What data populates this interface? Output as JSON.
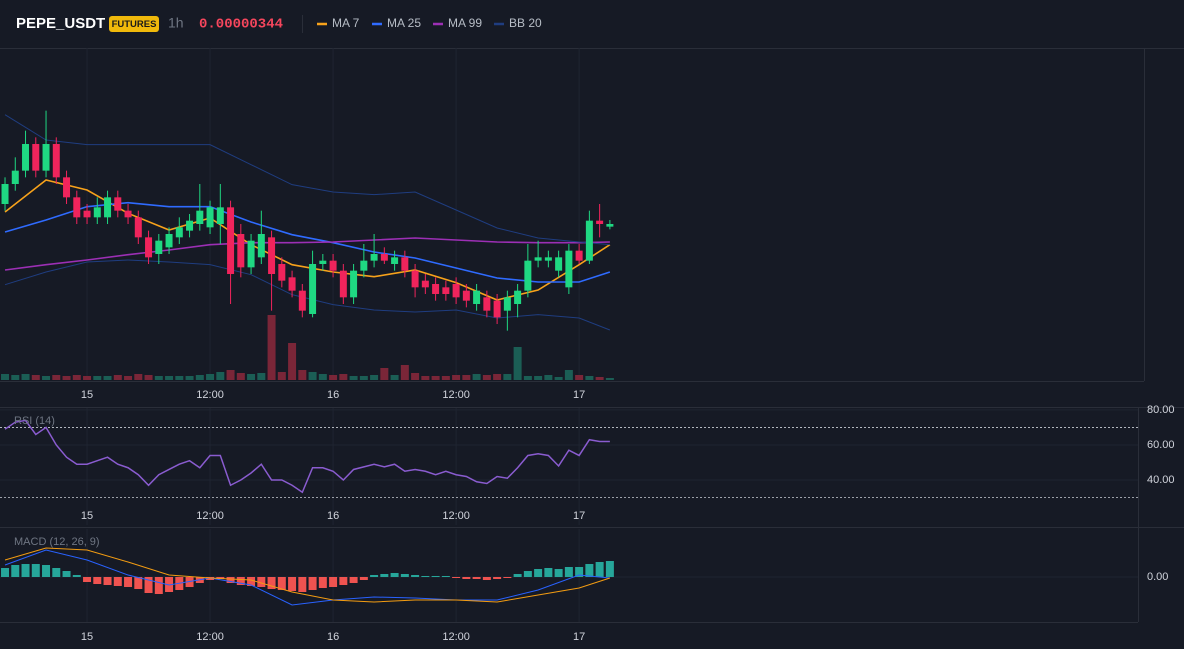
{
  "header": {
    "symbol": "PEPE_USDT",
    "badge": "FUTURES",
    "interval": "1h",
    "price": "0.00000344"
  },
  "chart_data": [
    {
      "type": "candlestick",
      "x": [
        0,
        1,
        2,
        3,
        4,
        5,
        6,
        7,
        8,
        9,
        10,
        11,
        12,
        13,
        14,
        15,
        16,
        17,
        18,
        19,
        20,
        21,
        22,
        23,
        24,
        25,
        26,
        27,
        28,
        29,
        30,
        31,
        32,
        33,
        34,
        35,
        36,
        37,
        38,
        39,
        40,
        41,
        42,
        43,
        44,
        45,
        46,
        47,
        48,
        49,
        50,
        51,
        52,
        53,
        54,
        55,
        56,
        57,
        58,
        59
      ],
      "xlim": [
        -0.49,
        111.1
      ],
      "xticks": [
        {
          "value": 8,
          "label": "15"
        },
        {
          "value": 20,
          "label": "12:00"
        },
        {
          "value": 32,
          "label": "16"
        },
        {
          "value": 44,
          "label": "12:00"
        },
        {
          "value": 56,
          "label": "17"
        }
      ],
      "ylim": [
        3.206e-06,
        3.704e-06
      ],
      "open": [
        3.47e-06,
        3.5e-06,
        3.52e-06,
        3.56e-06,
        3.52e-06,
        3.56e-06,
        3.51e-06,
        3.48e-06,
        3.46e-06,
        3.45e-06,
        3.45e-06,
        3.48e-06,
        3.46e-06,
        3.45e-06,
        3.42e-06,
        3.395e-06,
        3.405e-06,
        3.42e-06,
        3.43e-06,
        3.44e-06,
        3.435e-06,
        3.44e-06,
        3.465e-06,
        3.425e-06,
        3.375e-06,
        3.39e-06,
        3.42e-06,
        3.38e-06,
        3.36e-06,
        3.34e-06,
        3.305e-06,
        3.38e-06,
        3.385e-06,
        3.37e-06,
        3.33e-06,
        3.37e-06,
        3.385e-06,
        3.395e-06,
        3.38e-06,
        3.39e-06,
        3.37e-06,
        3.355e-06,
        3.35e-06,
        3.345e-06,
        3.35e-06,
        3.34e-06,
        3.32e-06,
        3.33e-06,
        3.325e-06,
        3.31e-06,
        3.32e-06,
        3.34e-06,
        3.385e-06,
        3.385e-06,
        3.37e-06,
        3.345e-06,
        3.4e-06,
        3.385e-06,
        3.445e-06,
        3.436e-06
      ],
      "high": [
        3.51e-06,
        3.54e-06,
        3.58e-06,
        3.57e-06,
        3.61e-06,
        3.57e-06,
        3.52e-06,
        3.49e-06,
        3.47e-06,
        3.48e-06,
        3.49e-06,
        3.49e-06,
        3.47e-06,
        3.46e-06,
        3.43e-06,
        3.425e-06,
        3.435e-06,
        3.45e-06,
        3.455e-06,
        3.5e-06,
        3.475e-06,
        3.5e-06,
        3.475e-06,
        3.44e-06,
        3.425e-06,
        3.46e-06,
        3.43e-06,
        3.39e-06,
        3.37e-06,
        3.35e-06,
        3.4e-06,
        3.395e-06,
        3.395e-06,
        3.38e-06,
        3.38e-06,
        3.41e-06,
        3.425e-06,
        3.405e-06,
        3.4e-06,
        3.4e-06,
        3.38e-06,
        3.365e-06,
        3.36e-06,
        3.355e-06,
        3.36e-06,
        3.35e-06,
        3.35e-06,
        3.34e-06,
        3.335e-06,
        3.34e-06,
        3.35e-06,
        3.41e-06,
        3.415e-06,
        3.4e-06,
        3.4e-06,
        3.41e-06,
        3.41e-06,
        3.46e-06,
        3.47e-06,
        3.446e-06
      ],
      "low": [
        3.46e-06,
        3.49e-06,
        3.51e-06,
        3.51e-06,
        3.51e-06,
        3.5e-06,
        3.47e-06,
        3.44e-06,
        3.44e-06,
        3.44e-06,
        3.44e-06,
        3.45e-06,
        3.44e-06,
        3.41e-06,
        3.38e-06,
        3.38e-06,
        3.395e-06,
        3.41e-06,
        3.42e-06,
        3.43e-06,
        3.425e-06,
        3.41e-06,
        3.32e-06,
        3.36e-06,
        3.365e-06,
        3.38e-06,
        3.31e-06,
        3.345e-06,
        3.33e-06,
        3.3e-06,
        3.3e-06,
        3.37e-06,
        3.36e-06,
        3.32e-06,
        3.32e-06,
        3.36e-06,
        3.375e-06,
        3.38e-06,
        3.37e-06,
        3.36e-06,
        3.33e-06,
        3.335e-06,
        3.325e-06,
        3.325e-06,
        3.32e-06,
        3.315e-06,
        3.31e-06,
        3.3e-06,
        3.29e-06,
        3.28e-06,
        3.3e-06,
        3.33e-06,
        3.375e-06,
        3.375e-06,
        3.36e-06,
        3.335e-06,
        3.38e-06,
        3.38e-06,
        3.42e-06,
        3.432e-06
      ],
      "close": [
        3.5e-06,
        3.52e-06,
        3.56e-06,
        3.52e-06,
        3.56e-06,
        3.51e-06,
        3.48e-06,
        3.45e-06,
        3.45e-06,
        3.465e-06,
        3.48e-06,
        3.46e-06,
        3.45e-06,
        3.42e-06,
        3.39e-06,
        3.415e-06,
        3.425e-06,
        3.435e-06,
        3.445e-06,
        3.46e-06,
        3.465e-06,
        3.465e-06,
        3.365e-06,
        3.375e-06,
        3.415e-06,
        3.425e-06,
        3.365e-06,
        3.355e-06,
        3.34e-06,
        3.31e-06,
        3.38e-06,
        3.385e-06,
        3.37e-06,
        3.33e-06,
        3.37e-06,
        3.385e-06,
        3.395e-06,
        3.385e-06,
        3.39e-06,
        3.37e-06,
        3.345e-06,
        3.345e-06,
        3.335e-06,
        3.335e-06,
        3.33e-06,
        3.325e-06,
        3.34e-06,
        3.31e-06,
        3.3e-06,
        3.33e-06,
        3.34e-06,
        3.385e-06,
        3.39e-06,
        3.39e-06,
        3.39e-06,
        3.4e-06,
        3.385e-06,
        3.445e-06,
        3.44e-06,
        3.44e-06
      ],
      "up_color": "#1fd882",
      "down_color": "#f0245c",
      "overlay_x": [
        0,
        4,
        8,
        12,
        16,
        20,
        24,
        28,
        32,
        36,
        40,
        44,
        48,
        52,
        56,
        59
      ],
      "overlays": [
        {
          "name": "MA 7",
          "color": "#f7a21b",
          "values": [
            3.458e-06,
            3.506e-06,
            3.491e-06,
            3.456e-06,
            3.431e-06,
            3.449e-06,
            3.409e-06,
            3.379e-06,
            3.368e-06,
            3.361e-06,
            3.371e-06,
            3.352e-06,
            3.326e-06,
            3.341e-06,
            3.379e-06,
            3.409e-06
          ]
        },
        {
          "name": "MA 25",
          "color": "#2f6bff",
          "values": [
            3.428e-06,
            3.446e-06,
            3.466e-06,
            3.472e-06,
            3.466e-06,
            3.466e-06,
            3.443e-06,
            3.424e-06,
            3.412e-06,
            3.398e-06,
            3.389e-06,
            3.374e-06,
            3.359e-06,
            3.353e-06,
            3.353e-06,
            3.368e-06
          ]
        },
        {
          "name": "MA 99",
          "color": "#9c2fb5",
          "values": [
            3.371e-06,
            3.379e-06,
            3.386e-06,
            3.394e-06,
            3.401e-06,
            3.409e-06,
            3.412e-06,
            3.412e-06,
            3.413e-06,
            3.416e-06,
            3.419e-06,
            3.416e-06,
            3.413e-06,
            3.412e-06,
            3.412e-06,
            3.413e-06
          ]
        },
        {
          "name": "BB 20",
          "color": "#1f3d80",
          "upper": [
            3.604e-06,
            3.566e-06,
            3.559e-06,
            3.559e-06,
            3.559e-06,
            3.559e-06,
            3.529e-06,
            3.499e-06,
            3.488e-06,
            3.484e-06,
            3.488e-06,
            3.461e-06,
            3.434e-06,
            3.419e-06,
            3.413e-06,
            3.409e-06
          ],
          "lower": [
            3.349e-06,
            3.368e-06,
            3.383e-06,
            3.386e-06,
            3.383e-06,
            3.379e-06,
            3.364e-06,
            3.334e-06,
            3.319e-06,
            3.311e-06,
            3.308e-06,
            3.311e-06,
            3.299e-06,
            3.304e-06,
            3.299e-06,
            3.281e-06
          ]
        }
      ],
      "volume": {
        "ylim": [
          0,
          100
        ],
        "up_color": "#1b5e55",
        "down_color": "#7a2638",
        "values": [
          6,
          5,
          6,
          5,
          4,
          5,
          4,
          5,
          4,
          4,
          4,
          5,
          4,
          6,
          5,
          4,
          4,
          4,
          4,
          5,
          6,
          8,
          10,
          7,
          6,
          7,
          65,
          8,
          37,
          10,
          8,
          6,
          5,
          6,
          4,
          4,
          5,
          12,
          5,
          15,
          7,
          4,
          4,
          4,
          5,
          5,
          6,
          5,
          6,
          6,
          33,
          4,
          4,
          5,
          3,
          10,
          5,
          4,
          3,
          2
        ]
      }
    },
    {
      "type": "line",
      "title": "RSI (14)",
      "color": "#8a5cd0",
      "ylim": [
        14.3,
        81.1
      ],
      "yticks": [
        {
          "value": 80,
          "label": "80.00"
        },
        {
          "value": 60,
          "label": "60.00"
        },
        {
          "value": 40,
          "label": "40.00"
        }
      ],
      "bands": [
        70,
        30
      ],
      "values": [
        69,
        73,
        74,
        66,
        70,
        60,
        53,
        49,
        49,
        51,
        53,
        49,
        47,
        43,
        37,
        43,
        46,
        49,
        51,
        47,
        54,
        54,
        37,
        40,
        44,
        49,
        40,
        40,
        37,
        33,
        47,
        47,
        45,
        40,
        46,
        47.5,
        49,
        47.5,
        49,
        45,
        46,
        45,
        43,
        45,
        43,
        42,
        39,
        38,
        42,
        41,
        47,
        54,
        55,
        54,
        48,
        57,
        54,
        63,
        62,
        62
      ]
    },
    {
      "type": "macd",
      "title": "MACD (12, 26, 9)",
      "ylim": [
        -4.5e-09,
        4.8e-09
      ],
      "yticks": [
        {
          "value": 0,
          "label": "0.00"
        }
      ],
      "hist_up_color": "#26a69a",
      "hist_down_color": "#ef5350",
      "histogram": [
        9e-10,
        1.2e-09,
        1.3e-09,
        1.3e-09,
        1.2e-09,
        9e-10,
        6e-10,
        2e-10,
        -5e-10,
        -7e-10,
        -8e-10,
        -9e-10,
        -1e-09,
        -1.2e-09,
        -1.6e-09,
        -1.7e-09,
        -1.5e-09,
        -1.3e-09,
        -1e-09,
        -6e-10,
        -3e-10,
        -2e-10,
        -6e-10,
        -8e-10,
        -9e-10,
        -1e-09,
        -1.2e-09,
        -1.3e-09,
        -1.4e-09,
        -1.5e-09,
        -1.3e-09,
        -1.1e-09,
        -1e-09,
        -8e-10,
        -6e-10,
        -3e-10,
        2e-10,
        3e-10,
        4e-10,
        3e-10,
        2e-10,
        1e-10,
        1e-10,
        1e-10,
        -1e-10,
        -2e-10,
        -2e-10,
        -3e-10,
        -2e-10,
        -1e-10,
        3e-10,
        6e-10,
        8e-10,
        9e-10,
        8e-10,
        1e-09,
        1e-09,
        1.3e-09,
        1.5e-09,
        1.6e-09
      ],
      "line_x": [
        0,
        4,
        8,
        12,
        16,
        20,
        24,
        28,
        32,
        36,
        40,
        44,
        48,
        52,
        56,
        59
      ],
      "macd_color": "#2962ff",
      "signal_color": "#f39c12",
      "macd": [
        1.2e-09,
        2.7e-09,
        1.7e-09,
        2e-10,
        -8e-10,
        -1e-10,
        -8e-10,
        -2.8e-09,
        -2.3e-09,
        -2e-09,
        -2.1e-09,
        -2.3e-09,
        -2.3e-09,
        -1.3e-09,
        2e-10,
        -1e-10
      ],
      "signal": [
        1.7e-09,
        2.9e-09,
        2.7e-09,
        1.5e-09,
        2e-10,
        -1e-10,
        -3e-10,
        -1.5e-09,
        -2.3e-09,
        -2.5e-09,
        -2.3e-09,
        -2.3e-09,
        -2.5e-09,
        -1.8e-09,
        -1.1e-09,
        -1e-10
      ]
    }
  ]
}
